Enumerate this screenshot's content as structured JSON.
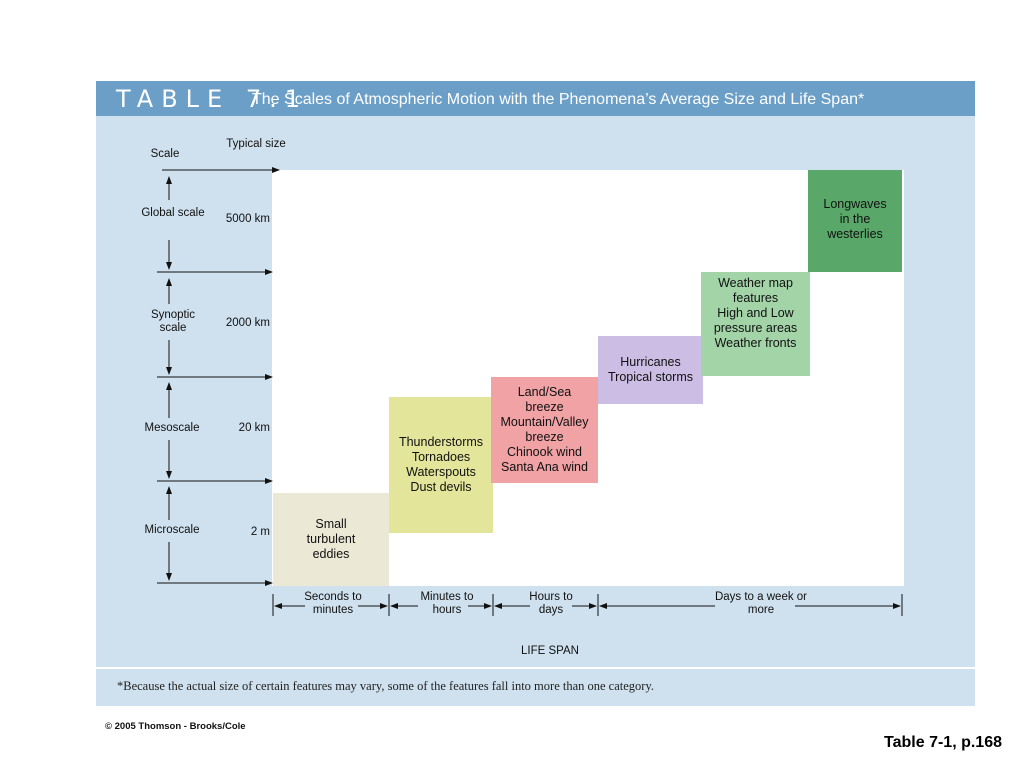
{
  "header": {
    "table_label": "TABLE 7.1",
    "title": "The Scales of Atmospheric Motion with the Phenomena’s Average Size and Life Span*"
  },
  "axes": {
    "scale_heading": "Scale",
    "size_heading": "Typical size",
    "lifespan_label": "LIFE SPAN"
  },
  "scales": [
    {
      "name": "Global scale",
      "size": "5000 km"
    },
    {
      "name": "Synoptic scale",
      "size": "2000 km"
    },
    {
      "name": "Mesoscale",
      "size": "20 km"
    },
    {
      "name": "Microscale",
      "size": "2 m"
    }
  ],
  "lifespans": [
    {
      "label": "Seconds to minutes"
    },
    {
      "label": "Minutes to hours"
    },
    {
      "label": "Hours to days"
    },
    {
      "label": "Days to a week or more"
    }
  ],
  "phenomena": [
    {
      "lines": [
        "Small",
        "turbulent",
        "eddies"
      ],
      "color": "#ebe8d6"
    },
    {
      "lines": [
        "Thunderstorms",
        "Tornadoes",
        "Waterspouts",
        "Dust devils"
      ],
      "color": "#e3e59b"
    },
    {
      "lines": [
        "Land/Sea",
        "breeze",
        "Mountain/Valley",
        "breeze",
        "Chinook wind",
        "Santa Ana wind"
      ],
      "color": "#f0a2a5"
    },
    {
      "lines": [
        "Hurricanes",
        "Tropical storms"
      ],
      "color": "#cbbde3"
    },
    {
      "lines": [
        "Weather map",
        "features",
        "High and Low",
        "pressure areas",
        "Weather fronts"
      ],
      "color": "#a3d4a8"
    },
    {
      "lines": [
        "Longwaves",
        "in the",
        "westerlies"
      ],
      "color": "#5aa869"
    }
  ],
  "footnote": "*Because the actual size of certain features may vary, some of the features fall into more than one category.",
  "copyright": "© 2005 Thomson - Brooks/Cole",
  "page_ref": "Table 7-1, p.168",
  "colors": {
    "title_bar": "#6b9fc7",
    "panel": "#cfe1ee"
  }
}
